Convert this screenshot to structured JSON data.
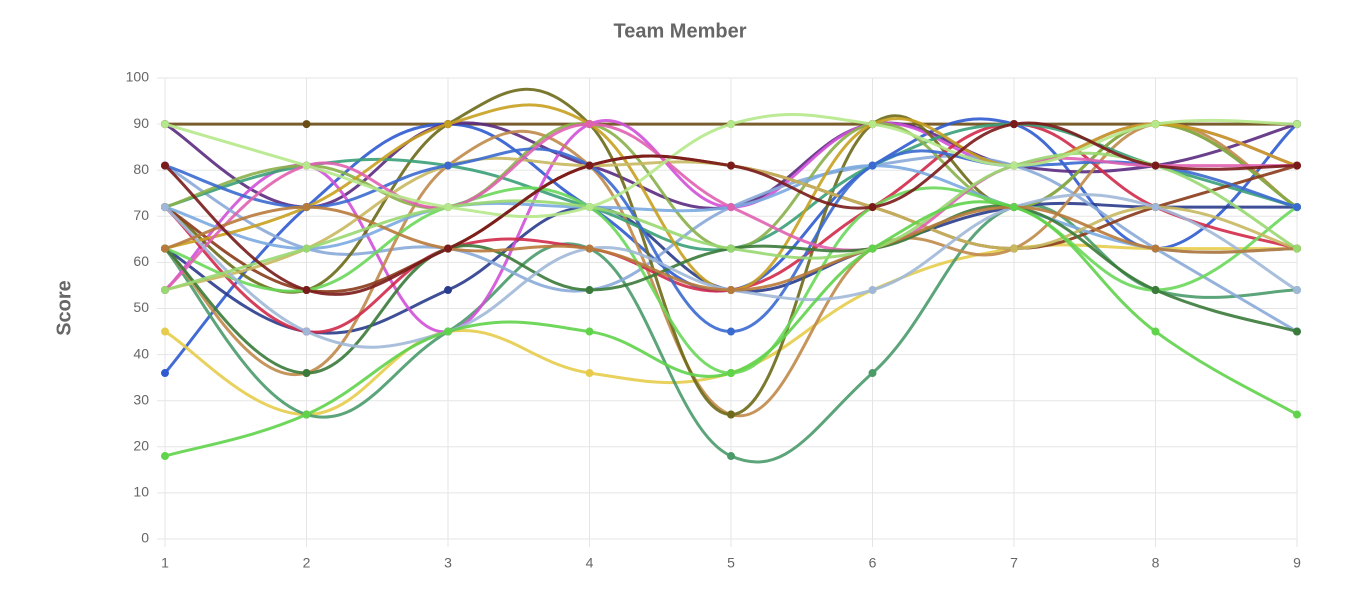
{
  "chart_data": {
    "type": "line",
    "title": "Team Member",
    "y_label": "Score",
    "x": [
      1,
      2,
      3,
      4,
      5,
      6,
      7,
      8,
      9
    ],
    "xlim": [
      1,
      9
    ],
    "xticks": [
      1,
      2,
      3,
      4,
      5,
      6,
      7,
      8,
      9
    ],
    "ylim": [
      0,
      100
    ],
    "yticks": [
      0,
      10,
      20,
      30,
      40,
      50,
      60,
      70,
      80,
      90,
      100
    ],
    "grid": true,
    "series": [
      {
        "color": "#6b4e16",
        "values": [
          90,
          90,
          90,
          90,
          90,
          90,
          90,
          90,
          90
        ]
      },
      {
        "color": "#2f5bd0",
        "values": [
          36,
          72,
          90,
          72,
          54,
          81,
          90,
          63,
          90
        ]
      },
      {
        "color": "#e6cc4a",
        "values": [
          45,
          27,
          45,
          36,
          36,
          54,
          63,
          63,
          63
        ]
      },
      {
        "color": "#4a9a6a",
        "values": [
          63,
          27,
          45,
          63,
          18,
          36,
          72,
          54,
          54
        ]
      },
      {
        "color": "#2a3c8c",
        "values": [
          63,
          45,
          54,
          72,
          54,
          63,
          72,
          72,
          72
        ]
      },
      {
        "color": "#5a2a80",
        "values": [
          90,
          72,
          90,
          81,
          72,
          90,
          81,
          81,
          90
        ]
      },
      {
        "color": "#d050d8",
        "values": [
          54,
          81,
          45,
          90,
          72,
          90,
          81,
          90,
          81
        ]
      },
      {
        "color": "#88aad8",
        "values": [
          81,
          63,
          63,
          54,
          72,
          81,
          81,
          63,
          45
        ]
      },
      {
        "color": "#c08a4a",
        "values": [
          63,
          36,
          81,
          81,
          27,
          63,
          63,
          90,
          72
        ]
      },
      {
        "color": "#6d6a1a",
        "values": [
          72,
          54,
          90,
          90,
          27,
          90,
          72,
          90,
          72
        ]
      },
      {
        "color": "#d02a4a",
        "values": [
          72,
          45,
          63,
          63,
          54,
          72,
          90,
          72,
          63
        ]
      },
      {
        "color": "#3aa078",
        "values": [
          72,
          81,
          81,
          72,
          63,
          81,
          90,
          81,
          72
        ]
      },
      {
        "color": "#8ab04a",
        "values": [
          72,
          81,
          72,
          90,
          63,
          90,
          72,
          90,
          72
        ]
      },
      {
        "color": "#8a3a1a",
        "values": [
          72,
          54,
          63,
          81,
          81,
          72,
          63,
          72,
          81
        ]
      },
      {
        "color": "#7aaae0",
        "values": [
          72,
          63,
          72,
          72,
          72,
          81,
          72,
          63,
          63
        ]
      },
      {
        "color": "#c8a020",
        "values": [
          63,
          72,
          90,
          90,
          54,
          90,
          81,
          90,
          81
        ]
      },
      {
        "color": "#6ad85a",
        "values": [
          63,
          54,
          72,
          72,
          36,
          72,
          72,
          54,
          72
        ]
      },
      {
        "color": "#c8b860",
        "values": [
          54,
          63,
          81,
          81,
          81,
          72,
          63,
          72,
          63
        ]
      },
      {
        "color": "#3a6ad0",
        "values": [
          81,
          72,
          81,
          81,
          45,
          81,
          81,
          81,
          72
        ]
      },
      {
        "color": "#e060b0",
        "values": [
          54,
          81,
          72,
          90,
          72,
          63,
          81,
          81,
          81
        ]
      },
      {
        "color": "#3a7a3a",
        "values": [
          63,
          36,
          63,
          54,
          63,
          63,
          72,
          54,
          45
        ]
      },
      {
        "color": "#a0b8d8",
        "values": [
          72,
          45,
          45,
          63,
          54,
          54,
          72,
          72,
          54
        ]
      },
      {
        "color": "#b87a3a",
        "values": [
          63,
          72,
          63,
          63,
          54,
          63,
          72,
          63,
          63
        ]
      },
      {
        "color": "#98d870",
        "values": [
          54,
          63,
          72,
          72,
          63,
          63,
          81,
          81,
          63
        ]
      },
      {
        "color": "#b5e88a",
        "values": [
          90,
          81,
          72,
          72,
          90,
          90,
          81,
          90,
          90
        ]
      },
      {
        "color": "#7a1a1a",
        "values": [
          81,
          54,
          63,
          81,
          81,
          72,
          90,
          81,
          81
        ]
      },
      {
        "color": "#5fd34a",
        "values": [
          18,
          27,
          45,
          45,
          36,
          63,
          72,
          45,
          27
        ]
      }
    ]
  }
}
